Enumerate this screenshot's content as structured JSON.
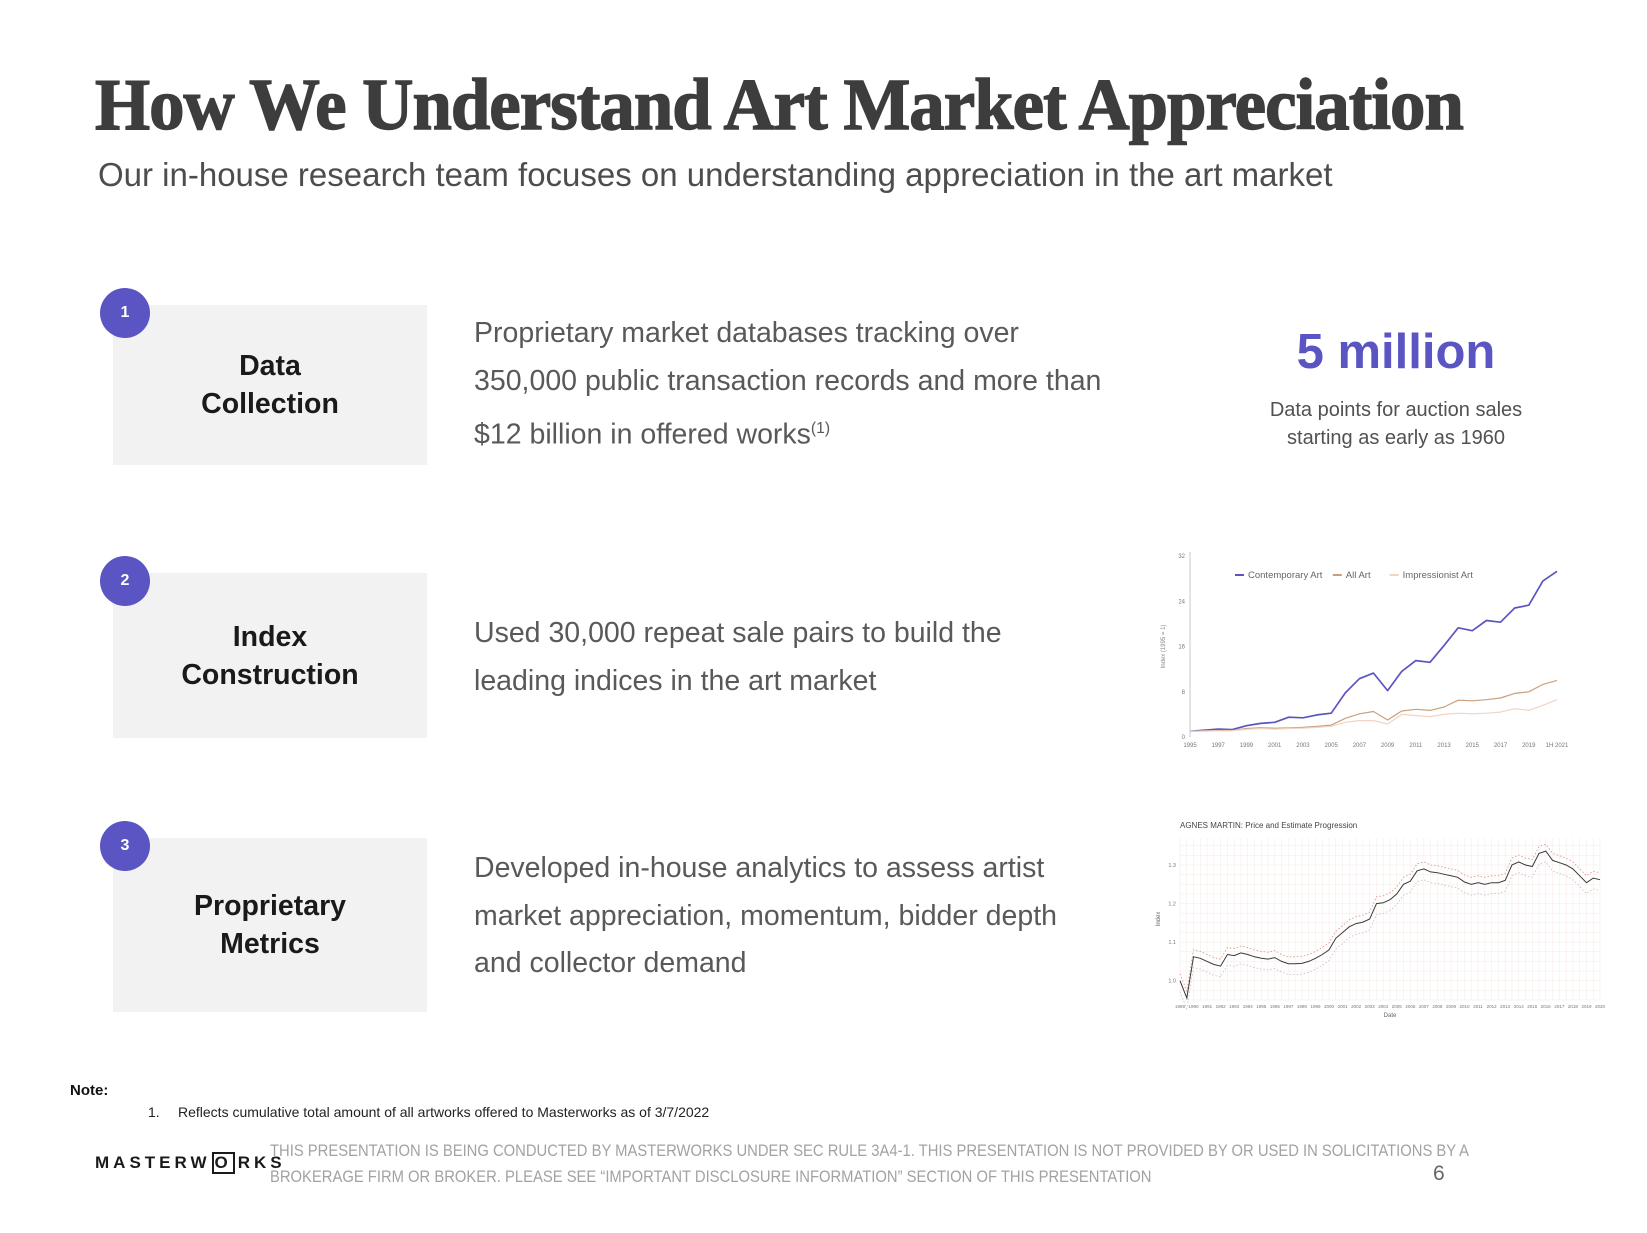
{
  "slide": {
    "title": "How We Understand Art Market Appreciation",
    "subtitle": "Our in-house research team focuses on understanding appreciation in the art market",
    "page_number": "6"
  },
  "accent_color": "#5a55c2",
  "rows": [
    {
      "number": "1",
      "label1": "Data",
      "label2": "Collection",
      "description_lines": [
        "Proprietary market databases tracking over",
        "350,000 public transaction records and more than",
        "$12 billion in offered works"
      ],
      "footnote_marker": "(1)",
      "stat_value": "5 million",
      "stat_caption": "Data points for auction sales starting as early as 1960"
    },
    {
      "number": "2",
      "label1": "Index",
      "label2": "Construction",
      "description_lines": [
        "Used 30,000 repeat sale pairs to build the",
        "leading indices in the art market"
      ],
      "footnote_marker": ""
    },
    {
      "number": "3",
      "label1": "Proprietary",
      "label2": "Metrics",
      "description_lines": [
        "Developed in-house analytics to assess artist",
        "market appreciation, momentum, bidder depth",
        "and collector demand"
      ],
      "footnote_marker": ""
    }
  ],
  "note": {
    "label": "Note:",
    "items": [
      {
        "num": "1.",
        "text": "Reflects cumulative total amount of all artworks offered to Masterworks as of 3/7/2022"
      }
    ]
  },
  "footer": {
    "logo_part1": "MASTERW",
    "logo_o": "O",
    "logo_part2": "RKS",
    "disclaimer": "THIS PRESENTATION IS BEING CONDUCTED BY MASTERWORKS UNDER SEC RULE 3A4-1. THIS PRESENTATION IS NOT PROVIDED BY OR USED IN SOLICITATIONS BY A BROKERAGE FIRM OR BROKER. PLEASE SEE “IMPORTANT DISCLOSURE INFORMATION” SECTION OF THIS PRESENTATION"
  },
  "chart_data": [
    {
      "type": "line",
      "ylabel": "Index (1995 = 1)",
      "yticks": [
        0,
        8,
        16,
        24,
        32
      ],
      "ylim": [
        0,
        32
      ],
      "x": [
        1995,
        1996,
        1997,
        1998,
        1999,
        2000,
        2001,
        2002,
        2003,
        2004,
        2005,
        2006,
        2007,
        2008,
        2009,
        2010,
        2011,
        2012,
        2013,
        2014,
        2015,
        2016,
        2017,
        2018,
        2019,
        2020,
        2021
      ],
      "xtick_positions": [
        1995,
        1997,
        1999,
        2001,
        2003,
        2005,
        2007,
        2009,
        2011,
        2013,
        2015,
        2017,
        2019,
        2021
      ],
      "xtick_labels": [
        "1995",
        "1997",
        "1999",
        "2001",
        "2003",
        "2005",
        "2007",
        "2009",
        "2011",
        "2013",
        "2015",
        "2017",
        "2019",
        "1H 2021"
      ],
      "series": [
        {
          "name": "Contemporary Art",
          "color": "#5a55c2",
          "values": [
            1.0,
            1.2,
            1.4,
            1.3,
            2.0,
            2.4,
            2.6,
            3.5,
            3.4,
            3.9,
            4.2,
            7.8,
            10.3,
            11.3,
            8.2,
            11.6,
            13.5,
            13.2,
            16.2,
            19.3,
            18.8,
            20.6,
            20.3,
            22.8,
            23.3,
            27.6,
            29.3
          ]
        },
        {
          "name": "All Art",
          "color": "#c9a07e",
          "values": [
            1.0,
            1.1,
            1.15,
            1.15,
            1.5,
            1.65,
            1.55,
            1.6,
            1.7,
            1.9,
            2.1,
            3.3,
            4.1,
            4.5,
            3.0,
            4.6,
            4.9,
            4.7,
            5.3,
            6.5,
            6.4,
            6.6,
            6.9,
            7.7,
            8.0,
            9.3,
            10.0
          ]
        },
        {
          "name": "Impressionist Art",
          "color": "#f3d3c3",
          "values": [
            1.0,
            1.05,
            1.1,
            1.12,
            1.35,
            1.5,
            1.4,
            1.5,
            1.55,
            1.7,
            1.9,
            2.6,
            2.9,
            2.9,
            2.3,
            4.0,
            3.8,
            3.6,
            4.0,
            4.2,
            4.1,
            4.2,
            4.4,
            5.0,
            4.7,
            5.6,
            6.6
          ]
        }
      ]
    },
    {
      "type": "line",
      "title": "AGNES MARTIN: Price and Estimate Progression",
      "xlabel": "Date",
      "ylabel": "Index",
      "yticks": [
        1.0,
        1.1,
        1.2,
        1.3
      ],
      "ylim": [
        0.95,
        1.37
      ],
      "x_start": 1989,
      "x_step": 0.5,
      "xtick_labels": [
        "1989",
        "1990",
        "1991",
        "1992",
        "1993",
        "1994",
        "1995",
        "1996",
        "1997",
        "1998",
        "1999",
        "2000",
        "2001",
        "2002",
        "2003",
        "2004",
        "2005",
        "2006",
        "2007",
        "2008",
        "2009",
        "2010",
        "2011",
        "2012",
        "2013",
        "2014",
        "2015",
        "2016",
        "2017",
        "2018",
        "2019",
        "2020"
      ],
      "price_color": "#3a3a3a",
      "band_high_color": "#d89080",
      "band_low_color": "#c9bfbf",
      "band_high_offset": 0.018,
      "band_low_offset": 0.028,
      "price": [
        1.0,
        0.955,
        1.062,
        1.058,
        1.05,
        1.042,
        1.038,
        1.068,
        1.065,
        1.072,
        1.068,
        1.062,
        1.058,
        1.056,
        1.06,
        1.05,
        1.044,
        1.044,
        1.045,
        1.05,
        1.058,
        1.068,
        1.08,
        1.11,
        1.125,
        1.14,
        1.148,
        1.152,
        1.16,
        1.2,
        1.202,
        1.21,
        1.225,
        1.25,
        1.258,
        1.285,
        1.29,
        1.282,
        1.28,
        1.276,
        1.272,
        1.268,
        1.256,
        1.25,
        1.254,
        1.25,
        1.254,
        1.254,
        1.26,
        1.3,
        1.308,
        1.3,
        1.296,
        1.33,
        1.336,
        1.312,
        1.306,
        1.3,
        1.29,
        1.272,
        1.254,
        1.266,
        1.262
      ]
    }
  ]
}
